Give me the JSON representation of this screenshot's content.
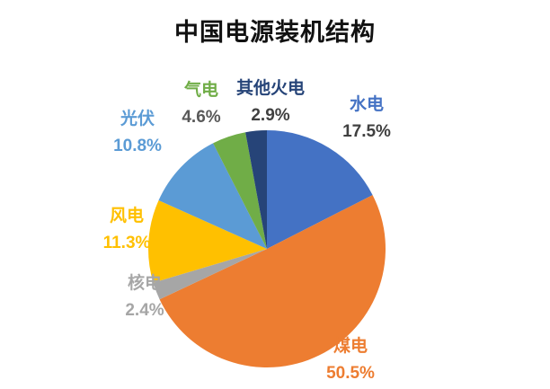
{
  "title": "中国电源装机结构",
  "chart_data": {
    "type": "pie",
    "title": "中国电源装机结构",
    "start_angle_deg": 0,
    "direction": "clockwise",
    "legend_position": "none",
    "segments": [
      {
        "id": "hydro",
        "name": "水电",
        "value": 17.5,
        "display": "17.5%",
        "color": "#4472C4",
        "value_color": "#404040"
      },
      {
        "id": "coal",
        "name": "煤电",
        "value": 50.5,
        "display": "50.5%",
        "color": "#ED7D31",
        "value_color": "#ED7D31"
      },
      {
        "id": "nuclear",
        "name": "核电",
        "value": 2.4,
        "display": "2.4%",
        "color": "#A6A6A6",
        "value_color": "#A6A6A6"
      },
      {
        "id": "wind",
        "name": "风电",
        "value": 11.3,
        "display": "11.3%",
        "color": "#FFC000",
        "value_color": "#FFC000"
      },
      {
        "id": "solar",
        "name": "光伏",
        "value": 10.8,
        "display": "10.8%",
        "color": "#5B9BD5",
        "value_color": "#5B9BD5"
      },
      {
        "id": "gas",
        "name": "气电",
        "value": 4.6,
        "display": "4.6%",
        "color": "#70AD47",
        "value_color": "#595959"
      },
      {
        "id": "other-thermal",
        "name": "其他火电",
        "value": 2.9,
        "display": "2.9%",
        "color": "#264478",
        "value_color": "#404040"
      }
    ]
  }
}
